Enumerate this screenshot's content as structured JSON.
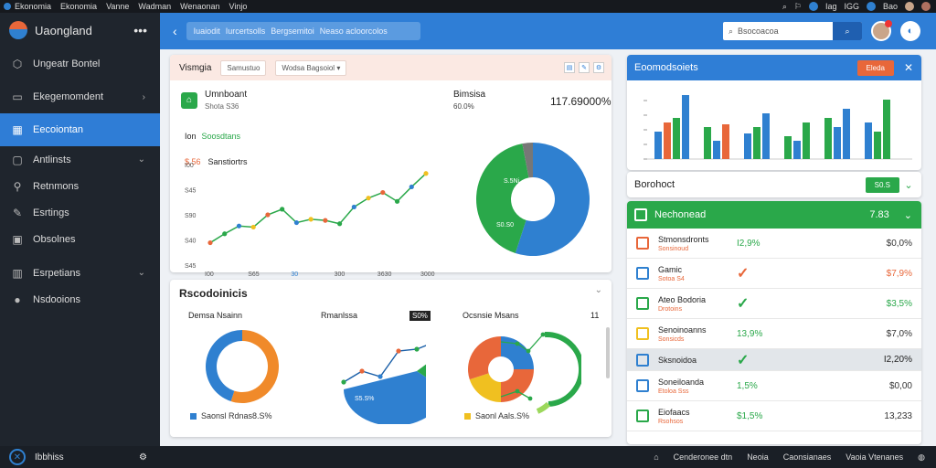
{
  "menubar": {
    "items": [
      "Ekonomia",
      "Ekonomia",
      "Vanne",
      "Wadman",
      "Wenaonan",
      "Vinjo"
    ],
    "right": [
      "Iag",
      "IGG",
      "Bao"
    ]
  },
  "sidebar": {
    "brand": "Uaongland",
    "items": [
      {
        "label": "Ungeatr Bontel",
        "icon": "cube-icon",
        "chev": false
      },
      {
        "label": "Ekegemomdent",
        "icon": "doc-icon",
        "chev": true
      },
      {
        "label": "Eecoiontan",
        "icon": "grid-icon",
        "chev": false,
        "active": true
      },
      {
        "label": "Antlinsts",
        "icon": "square-icon",
        "chev": true
      },
      {
        "label": "Retnmons",
        "icon": "wrench-icon",
        "chev": false
      },
      {
        "label": "Esrtings",
        "icon": "pen-icon",
        "chev": false
      },
      {
        "label": "Obsolnes",
        "icon": "chat-icon",
        "chev": false
      },
      {
        "label": "Esrpetians",
        "icon": "box-icon",
        "chev": true
      },
      {
        "label": "Nsdooions",
        "icon": "circle-icon",
        "chev": false
      }
    ],
    "footer": "Ibbhiss"
  },
  "topbar": {
    "path": [
      "Iuaiodit",
      "Iurcertsolls",
      "Bergsemitoi",
      "Neaso acloorcolos"
    ],
    "search_placeholder": "Bsocoacoa"
  },
  "card1": {
    "title": "Vismgia",
    "pills": [
      "Samustuo",
      "Wodsa Bagsoiol"
    ],
    "stat1_label": "Umnboant",
    "stat1_sub": "Shota S36",
    "stat2_label": "Bimsisa",
    "stat2_sub": "60.0%",
    "stat2_value": "117.69000%",
    "line_title": "Ion",
    "line_title_green": "Soosdtans",
    "legend": "Sanstiortrs",
    "legend_value": "$.56",
    "line_x": [
      "I00",
      "S65",
      "30",
      "300",
      "3630",
      "3000"
    ],
    "line_y": [
      "I00",
      "S45",
      "S90",
      "S40",
      "S45"
    ],
    "line_points": [
      20,
      28,
      35,
      34,
      45,
      50,
      38,
      41,
      40,
      37,
      52,
      60,
      65,
      57,
      70,
      82
    ],
    "donut_segments": [
      {
        "v": 55,
        "c": "#2f80d0"
      },
      {
        "v": 42,
        "c": "#2aa84a"
      },
      {
        "v": 3,
        "c": "#777"
      }
    ],
    "donut_labels": [
      "S.5Ni",
      "S0.S0"
    ]
  },
  "card2": {
    "title": "Rscodoinicis",
    "d1_title": "Demsa Nsainn",
    "d1_legend": "Saonsl Rdnas8.S%",
    "d1_segments": [
      {
        "v": 55,
        "c": "#f08a2a"
      },
      {
        "v": 45,
        "c": "#2f80d0"
      }
    ],
    "d2_title": "Rmanlssa",
    "d2_badge": "S0%",
    "d2_label": "S5.S%",
    "d3_title": "Ocsnsie Msans",
    "d3_num": "11",
    "d3_legend": "Saonl Aals.S%"
  },
  "card3": {
    "title": "Eoomodsoiets",
    "button": "Eleda",
    "bars": [
      [
        {
          "v": 30,
          "c": "#2f80d0"
        },
        {
          "v": 40,
          "c": "#e8673a"
        },
        {
          "v": 45,
          "c": "#2aa84a"
        },
        {
          "v": 70,
          "c": "#2f80d0"
        }
      ],
      [
        {
          "v": 35,
          "c": "#2aa84a"
        },
        {
          "v": 20,
          "c": "#2f80d0"
        },
        {
          "v": 38,
          "c": "#e8673a"
        }
      ],
      [
        {
          "v": 28,
          "c": "#2f80d0"
        },
        {
          "v": 35,
          "c": "#2aa84a"
        },
        {
          "v": 50,
          "c": "#2f80d0"
        }
      ],
      [
        {
          "v": 25,
          "c": "#2aa84a"
        },
        {
          "v": 20,
          "c": "#2f80d0"
        },
        {
          "v": 40,
          "c": "#2aa84a"
        }
      ],
      [
        {
          "v": 45,
          "c": "#2aa84a"
        },
        {
          "v": 35,
          "c": "#2f80d0"
        },
        {
          "v": 55,
          "c": "#2f80d0"
        }
      ],
      [
        {
          "v": 40,
          "c": "#2f80d0"
        },
        {
          "v": 30,
          "c": "#2aa84a"
        },
        {
          "v": 65,
          "c": "#2aa84a"
        }
      ]
    ]
  },
  "card4": {
    "title": "Borohoct",
    "button": "S0.S"
  },
  "card5": {
    "title": "Nechonead",
    "value": "7.83",
    "rows": [
      {
        "name": "Stmonsdronts",
        "sub": "Sonsinoud",
        "pct": "I2,9%",
        "pct_color": "#2aa84a",
        "amt": "$0,0%",
        "amt_color": "#333",
        "ico": "#e8673a"
      },
      {
        "name": "Gamic",
        "sub": "Sotoa S4",
        "check": "#e8673a",
        "amt": "$7,9%",
        "amt_color": "#e8673a",
        "ico": "#2f80d0"
      },
      {
        "name": "Ateo Bodoria",
        "sub": "Drotoins",
        "check": "#2aa84a",
        "amt": "$3,5%",
        "amt_color": "#2aa84a",
        "ico": "#2aa84a"
      },
      {
        "name": "Senoinoanns",
        "sub": "Sonsicds",
        "pct": "13,9%",
        "pct_color": "#2aa84a",
        "amt": "$7,0%",
        "amt_color": "#333",
        "ico": "#f0c020"
      },
      {
        "name": "Sksnoidoa",
        "sub": "",
        "check": "#2aa84a",
        "amt": "I2,20%",
        "amt_color": "#222",
        "ico": "#2f80d0",
        "sel": true
      },
      {
        "name": "Soneiloanda",
        "sub": "Etoloa Sss",
        "pct": "1,5%",
        "pct_color": "#2aa84a",
        "amt": "$0,00",
        "amt_color": "#333",
        "ico": "#2f80d0"
      },
      {
        "name": "Eiofaacs",
        "sub": "Rsohsos",
        "pct": "$1,5%",
        "pct_color": "#2aa84a",
        "amt": "13,233",
        "amt_color": "#333",
        "ico": "#2aa84a"
      }
    ]
  },
  "status": {
    "items": [
      "Cenderonee dtn",
      "Neoia",
      "Caonsianaes",
      "Vaoia Vtenanes"
    ]
  }
}
